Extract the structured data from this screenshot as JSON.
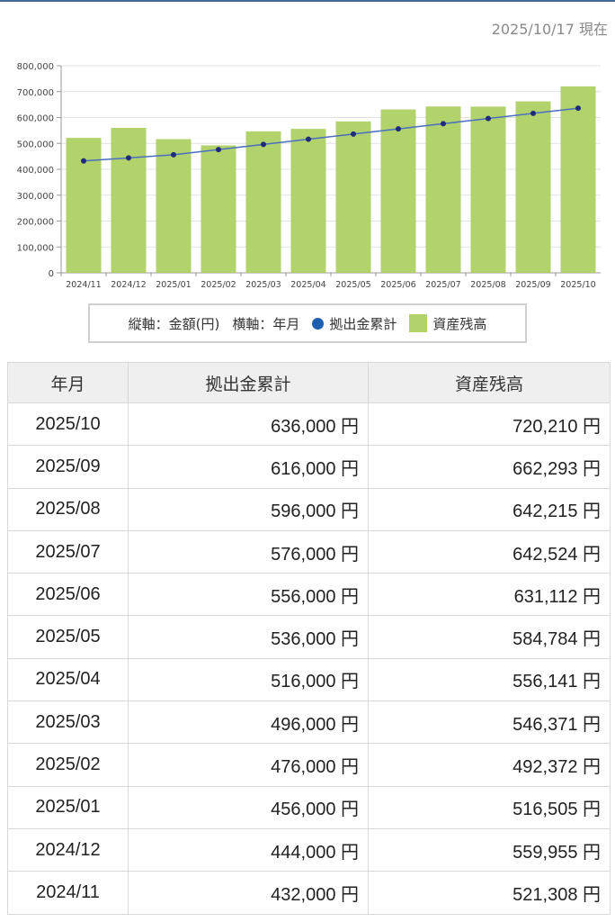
{
  "header": {
    "as_of": "2025/10/17 現在"
  },
  "colors": {
    "bar": "#b2d36c",
    "line": "#4a6fc0",
    "point": "#1f2a7a",
    "legend_dot": "#1e5fb0"
  },
  "legend": {
    "vertical_axis": "縦軸：金額(円)",
    "horizontal_axis": "横軸：年月",
    "contribution_label": "拠出金累計",
    "balance_label": "資産残高"
  },
  "chart_data": {
    "type": "bar",
    "categories": [
      "2024/11",
      "2024/12",
      "2025/01",
      "2025/02",
      "2025/03",
      "2025/04",
      "2025/05",
      "2025/06",
      "2025/07",
      "2025/08",
      "2025/09",
      "2025/10"
    ],
    "series": [
      {
        "name": "資産残高",
        "type": "bar",
        "values": [
          521308,
          559955,
          516505,
          492372,
          546371,
          556141,
          584784,
          631112,
          642524,
          642215,
          662293,
          720210
        ]
      },
      {
        "name": "拠出金累計",
        "type": "line",
        "values": [
          432000,
          444000,
          456000,
          476000,
          496000,
          516000,
          536000,
          556000,
          576000,
          596000,
          616000,
          636000
        ]
      }
    ],
    "yticks": [
      "0",
      "100,000",
      "200,000",
      "300,000",
      "400,000",
      "500,000",
      "600,000",
      "700,000",
      "800,000"
    ],
    "ylim": [
      0,
      800000
    ],
    "grid": true,
    "legend_position": "bottom"
  },
  "table": {
    "headers": [
      "年月",
      "拠出金累計",
      "資産残高"
    ],
    "rows": [
      [
        "2025/10",
        "636,000 円",
        "720,210 円"
      ],
      [
        "2025/09",
        "616,000 円",
        "662,293 円"
      ],
      [
        "2025/08",
        "596,000 円",
        "642,215 円"
      ],
      [
        "2025/07",
        "576,000 円",
        "642,524 円"
      ],
      [
        "2025/06",
        "556,000 円",
        "631,112 円"
      ],
      [
        "2025/05",
        "536,000 円",
        "584,784 円"
      ],
      [
        "2025/04",
        "516,000 円",
        "556,141 円"
      ],
      [
        "2025/03",
        "496,000 円",
        "546,371 円"
      ],
      [
        "2025/02",
        "476,000 円",
        "492,372 円"
      ],
      [
        "2025/01",
        "456,000 円",
        "516,505 円"
      ],
      [
        "2024/12",
        "444,000 円",
        "559,955 円"
      ],
      [
        "2024/11",
        "432,000 円",
        "521,308 円"
      ]
    ]
  }
}
